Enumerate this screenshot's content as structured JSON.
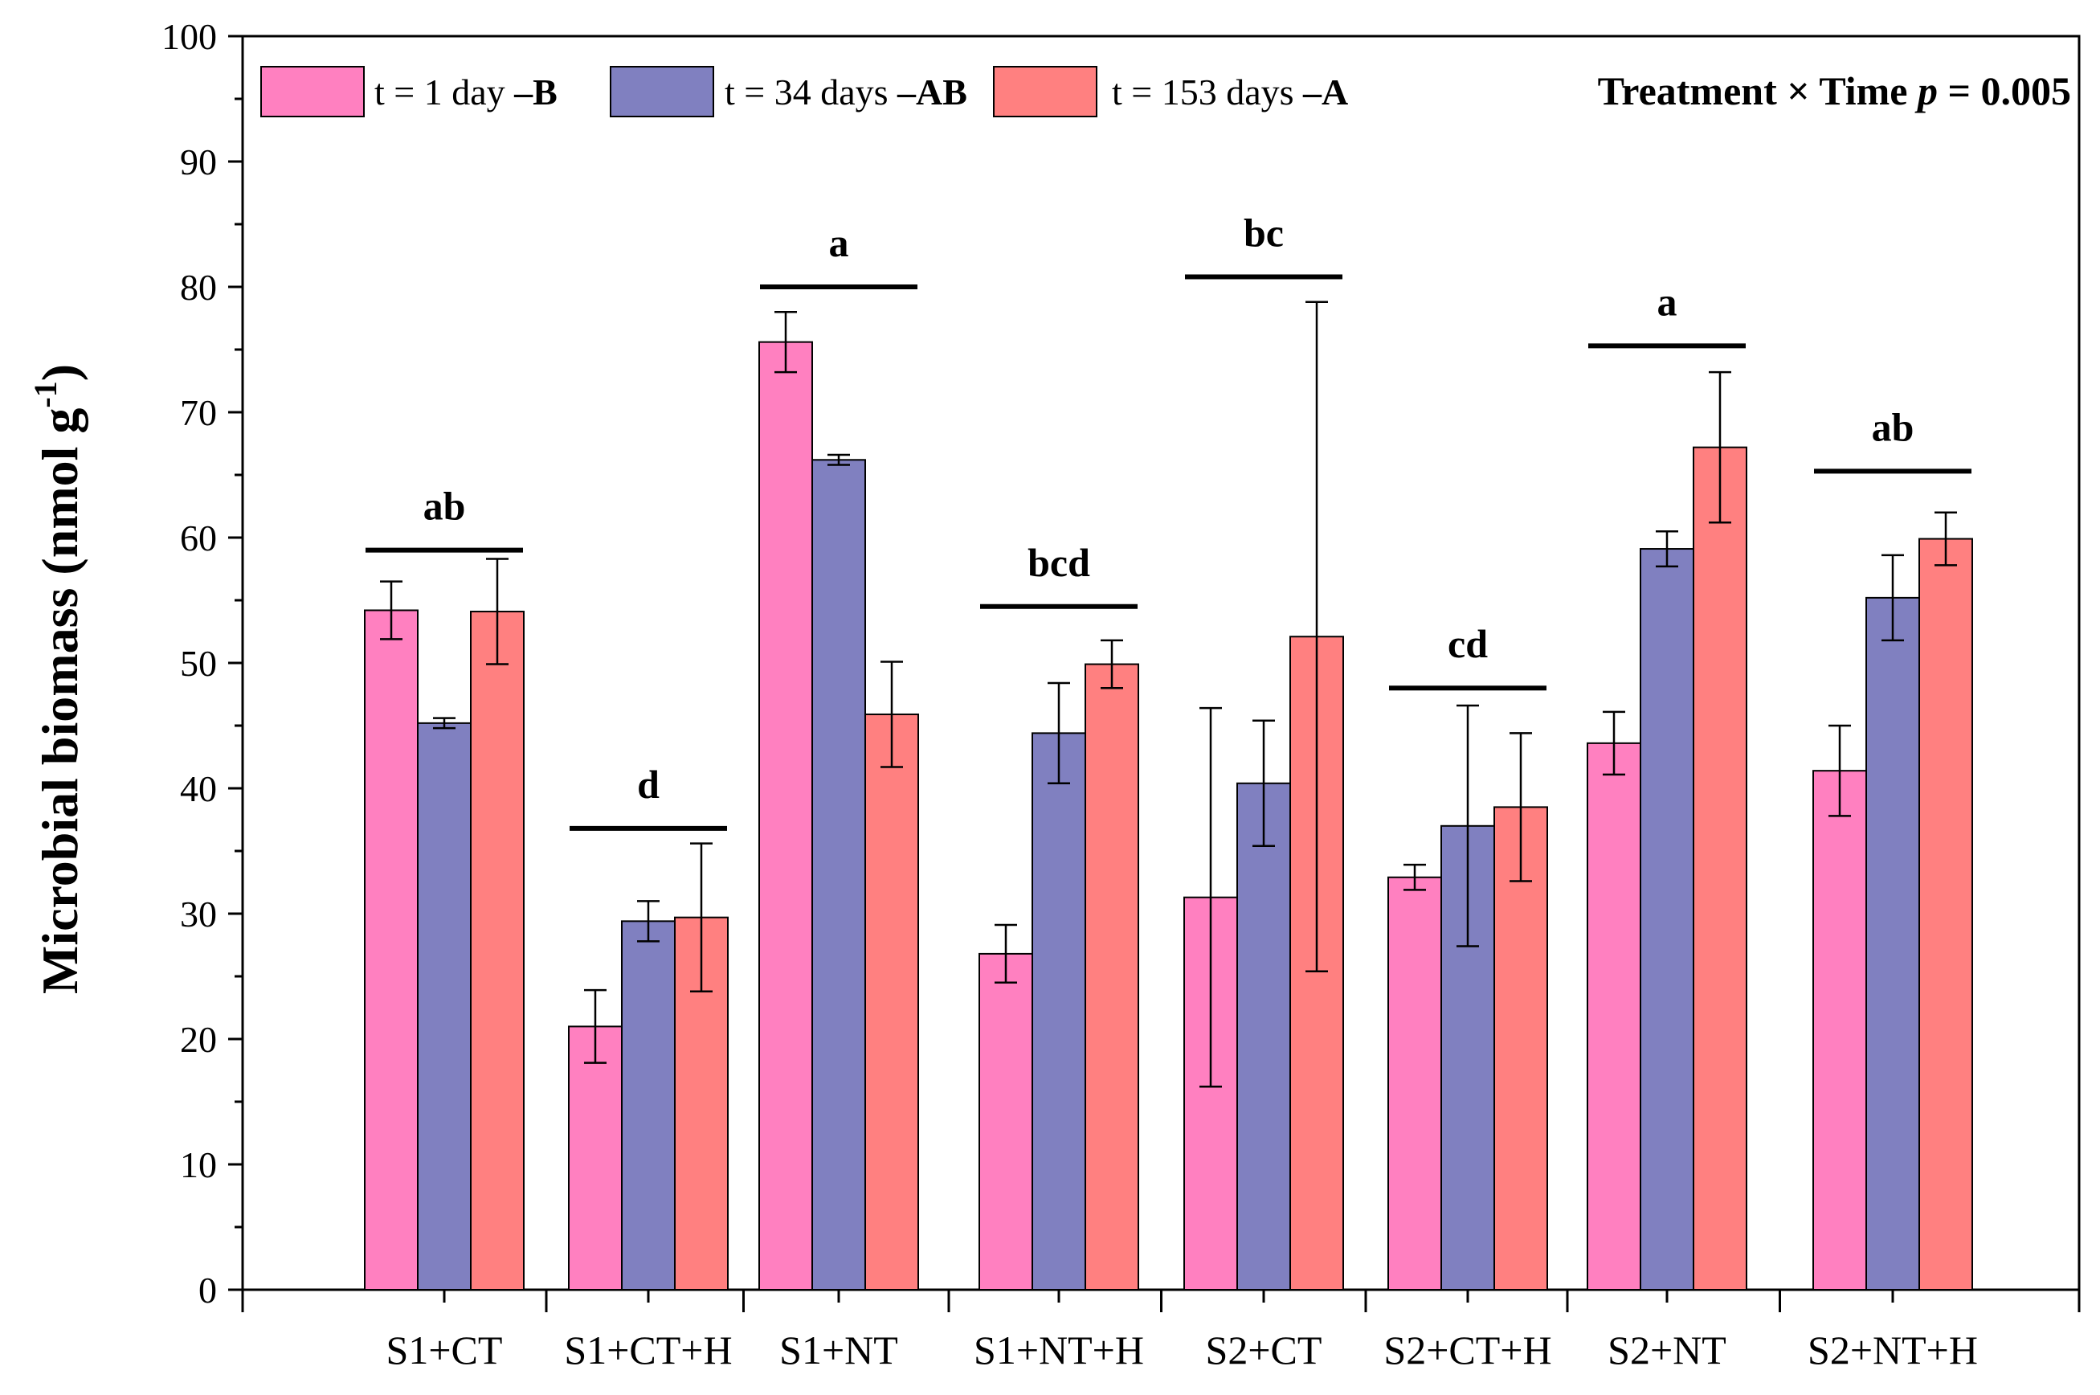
{
  "chart_data": {
    "type": "bar",
    "title": "",
    "xlabel": "",
    "ylabel": "Microbial biomass (nmol g",
    "ylabel_sup": "-1",
    "ylabel_close": ")",
    "ylim": [
      0,
      100
    ],
    "yticks": [
      0,
      10,
      20,
      30,
      40,
      50,
      60,
      70,
      80,
      90,
      100
    ],
    "categories": [
      "S1+CT",
      "S1+CT+H",
      "S1+NT",
      "S1+NT+H",
      "S2+CT",
      "S2+CT+H",
      "S2+NT",
      "S2+NT+H"
    ],
    "series": [
      {
        "name": "t = 1 day",
        "letter": "–B",
        "color": "#ff80c0",
        "values": [
          54.2,
          21.0,
          75.6,
          26.8,
          31.3,
          32.9,
          43.6,
          41.4
        ],
        "errors": [
          2.3,
          2.9,
          2.4,
          2.3,
          15.1,
          1.0,
          2.5,
          3.6
        ]
      },
      {
        "name": "t = 34 days",
        "letter": "–AB",
        "color": "#8080c0",
        "values": [
          45.2,
          29.4,
          66.2,
          44.4,
          40.4,
          37.0,
          59.1,
          55.2
        ],
        "errors": [
          0.4,
          1.6,
          0.4,
          4.0,
          5.0,
          9.6,
          1.4,
          3.4
        ]
      },
      {
        "name": "t = 153 days",
        "letter": "–A",
        "color": "#ff8080",
        "values": [
          54.1,
          29.7,
          45.9,
          49.9,
          52.1,
          38.5,
          67.2,
          59.9
        ],
        "errors": [
          4.2,
          5.9,
          4.2,
          1.9,
          26.7,
          5.9,
          6.0,
          2.1
        ]
      }
    ],
    "group_letters": [
      "ab",
      "d",
      "a",
      "bcd",
      "bc",
      "cd",
      "a",
      "ab"
    ],
    "group_line_values": [
      59.0,
      36.8,
      80.0,
      54.5,
      80.8,
      48.0,
      75.3,
      65.3
    ],
    "annotation": {
      "prefix": "Treatment × Time ",
      "p_symbol": "p",
      "suffix": " = 0.005"
    },
    "legend_position": "top-left",
    "grid": false
  }
}
